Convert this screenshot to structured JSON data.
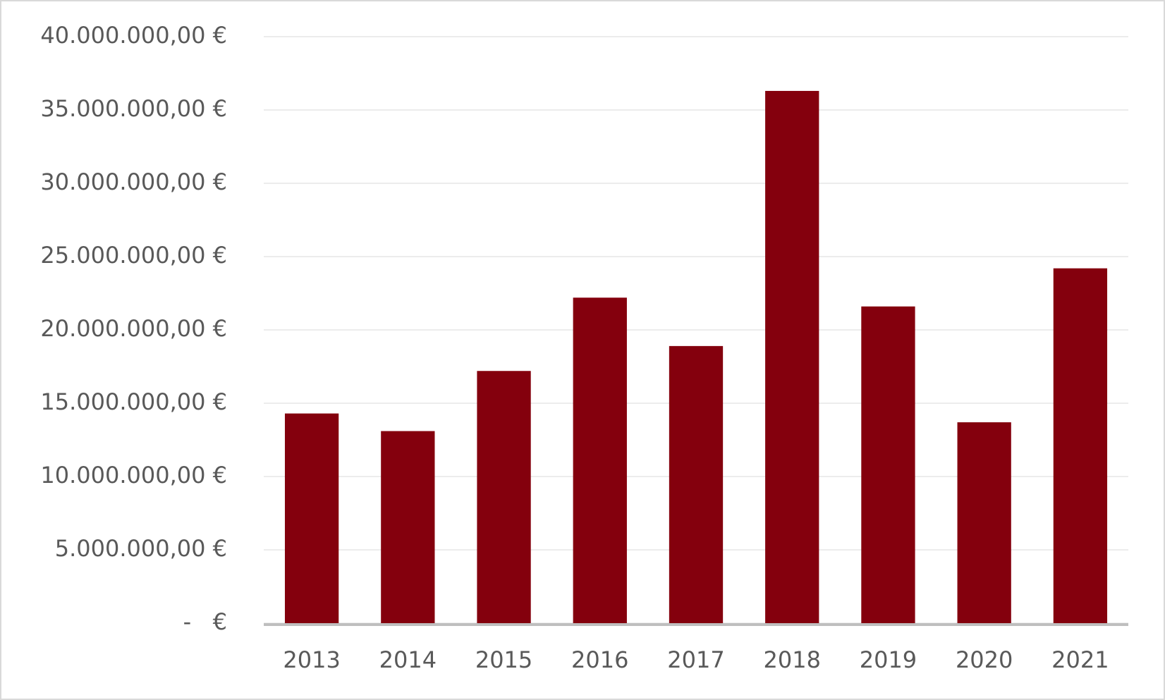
{
  "chart_data": {
    "type": "bar",
    "categories": [
      "2013",
      "2014",
      "2015",
      "2016",
      "2017",
      "2018",
      "2019",
      "2020",
      "2021"
    ],
    "values": [
      14300000,
      13100000,
      17200000,
      22200000,
      18900000,
      36300000,
      21600000,
      13700000,
      24200000
    ],
    "color": "#84000d",
    "ylim": [
      0,
      40000000
    ],
    "yticks": [
      {
        "value": 0,
        "label": "-   €"
      },
      {
        "value": 5000000,
        "label": "5.000.000,00 €"
      },
      {
        "value": 10000000,
        "label": "10.000.000,00 €"
      },
      {
        "value": 15000000,
        "label": "15.000.000,00 €"
      },
      {
        "value": 20000000,
        "label": "20.000.000,00 €"
      },
      {
        "value": 25000000,
        "label": "25.000.000,00 €"
      },
      {
        "value": 30000000,
        "label": "30.000.000,00 €"
      },
      {
        "value": 35000000,
        "label": "35.000.000,00 €"
      },
      {
        "value": 40000000,
        "label": "40.000.000,00 €"
      }
    ],
    "grid": true
  }
}
